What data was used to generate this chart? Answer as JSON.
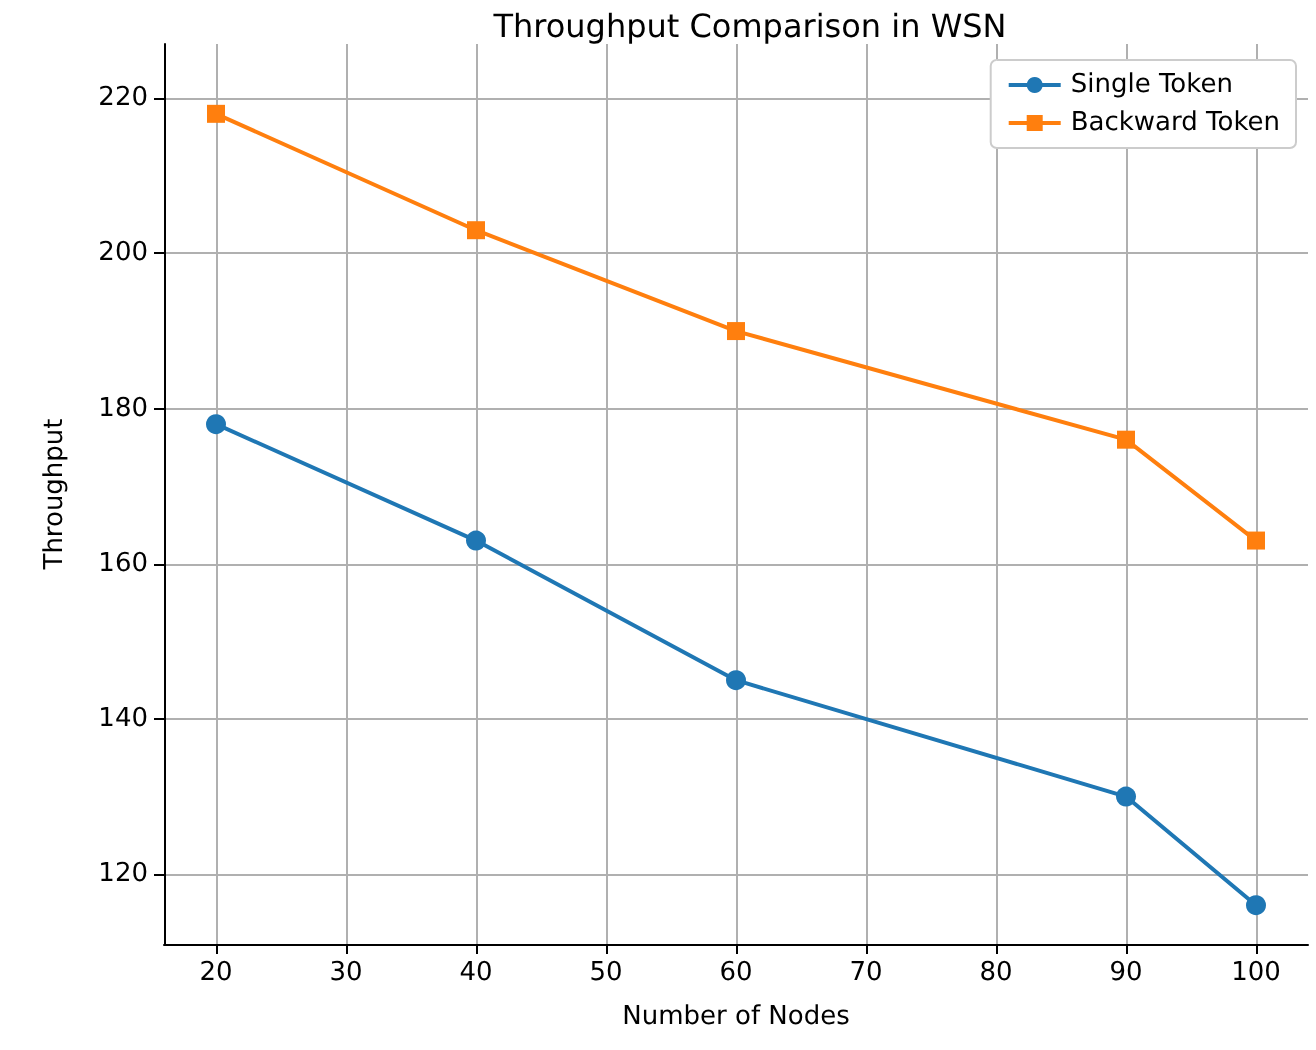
{
  "chart_data": {
    "type": "line",
    "title": "Throughput Comparison in WSN",
    "xlabel": "Number of Nodes",
    "ylabel": "Throughput",
    "x": [
      20,
      40,
      60,
      90,
      100
    ],
    "series": [
      {
        "name": "Single Token",
        "color": "#1f77b4",
        "marker": "circle",
        "values": [
          178,
          163,
          145,
          130,
          116
        ]
      },
      {
        "name": "Backward Token",
        "color": "#ff7f0e",
        "marker": "square",
        "values": [
          218,
          203,
          190,
          176,
          163
        ]
      }
    ],
    "xlim": [
      16,
      104
    ],
    "xticks": [
      20,
      30,
      40,
      50,
      60,
      70,
      80,
      90,
      100
    ],
    "ylim": [
      111,
      227
    ],
    "yticks": [
      120,
      140,
      160,
      180,
      200,
      220
    ],
    "grid": true,
    "legend": "top right",
    "line_style": "solid"
  }
}
